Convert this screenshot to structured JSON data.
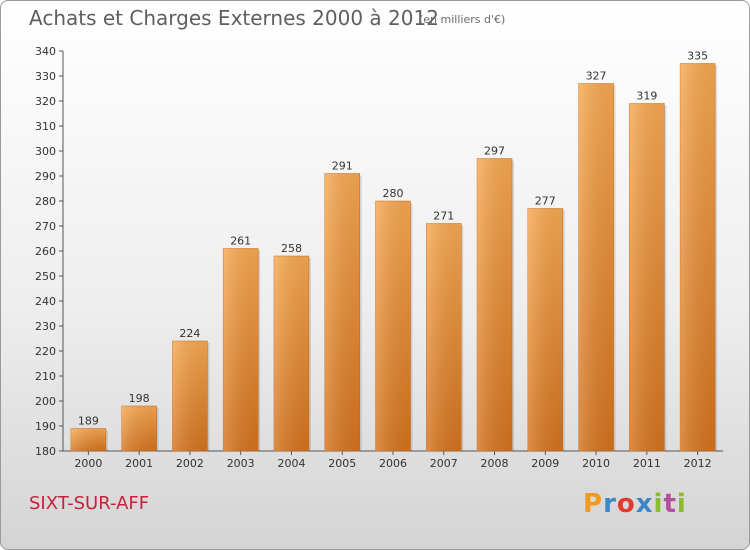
{
  "header": {
    "title": "Achats et Charges Externes 2000 à 2012",
    "subtitle": "(en milliers d'€)"
  },
  "footer": {
    "commune": "SIXT-SUR-AFF",
    "logo_text": "Proxiti"
  },
  "colors": {
    "bar_light": "#f7a852",
    "bar_dark": "#d4731e",
    "commune_text": "#c8203c"
  },
  "chart_data": {
    "type": "bar",
    "categories": [
      "2000",
      "2001",
      "2002",
      "2003",
      "2004",
      "2005",
      "2006",
      "2007",
      "2008",
      "2009",
      "2010",
      "2011",
      "2012"
    ],
    "values": [
      189,
      198,
      224,
      261,
      258,
      291,
      280,
      271,
      297,
      277,
      327,
      319,
      335
    ],
    "title": "Achats et Charges Externes 2000 à 2012",
    "xlabel": "",
    "ylabel": "",
    "ylim": [
      180,
      340
    ],
    "yticks": [
      180,
      190,
      200,
      210,
      220,
      230,
      240,
      250,
      260,
      270,
      280,
      290,
      300,
      310,
      320,
      330,
      340
    ],
    "grid": false,
    "data_labels": true,
    "legend": "none"
  }
}
